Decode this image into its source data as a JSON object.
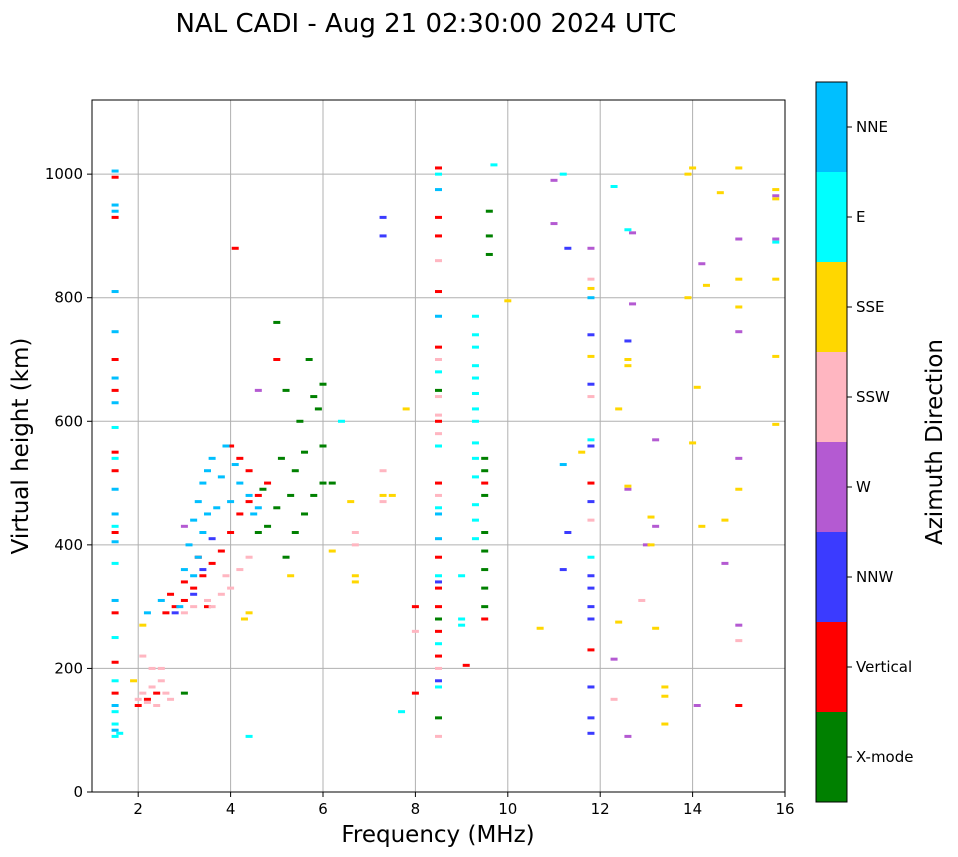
{
  "chart_data": {
    "type": "scatter",
    "title": "NAL CADI - Aug 21 02:30:00 2024 UTC",
    "xlabel": "Frequency (MHz)",
    "ylabel": "Virtual height (km)",
    "xlim": [
      1,
      16
    ],
    "ylim": [
      0,
      1120
    ],
    "xticks": [
      2,
      4,
      6,
      8,
      10,
      12,
      14,
      16
    ],
    "yticks": [
      0,
      200,
      400,
      600,
      800,
      1000
    ],
    "grid": true,
    "colorbar": {
      "label": "Azimuth Direction",
      "categories": [
        {
          "name": "X-mode",
          "color": "#008000"
        },
        {
          "name": "Vertical",
          "color": "#ff0000"
        },
        {
          "name": "NNW",
          "color": "#3b3bff"
        },
        {
          "name": "W",
          "color": "#b45ad2"
        },
        {
          "name": "SSW",
          "color": "#ffb6c1"
        },
        {
          "name": "SSE",
          "color": "#ffd700"
        },
        {
          "name": "E",
          "color": "#00ffff"
        },
        {
          "name": "NNE",
          "color": "#00bfff"
        }
      ]
    },
    "series": [
      {
        "name": "X-mode",
        "points": [
          [
            9.5,
            300
          ],
          [
            9.5,
            330
          ],
          [
            9.5,
            360
          ],
          [
            9.5,
            390
          ],
          [
            9.5,
            420
          ],
          [
            9.5,
            480
          ],
          [
            9.5,
            520
          ],
          [
            9.5,
            540
          ],
          [
            9.6,
            940
          ],
          [
            9.6,
            900
          ],
          [
            9.6,
            870
          ],
          [
            5.2,
            380
          ],
          [
            5.4,
            420
          ],
          [
            5.6,
            450
          ],
          [
            5.8,
            480
          ],
          [
            6.0,
            500
          ],
          [
            6.0,
            560
          ],
          [
            5.5,
            600
          ],
          [
            5.8,
            640
          ],
          [
            6.0,
            660
          ],
          [
            5.4,
            520
          ],
          [
            5.0,
            460
          ],
          [
            4.8,
            430
          ],
          [
            5.6,
            550
          ],
          [
            5.9,
            620
          ],
          [
            5.7,
            700
          ],
          [
            5.2,
            650
          ],
          [
            5.0,
            760
          ],
          [
            3.0,
            160
          ],
          [
            8.5,
            120
          ],
          [
            8.5,
            280
          ],
          [
            8.5,
            650
          ],
          [
            4.6,
            420
          ],
          [
            6.2,
            500
          ],
          [
            5.3,
            480
          ],
          [
            4.7,
            490
          ],
          [
            5.1,
            540
          ]
        ]
      },
      {
        "name": "Vertical",
        "points": [
          [
            1.5,
            700
          ],
          [
            1.5,
            650
          ],
          [
            1.5,
            550
          ],
          [
            1.5,
            520
          ],
          [
            1.5,
            420
          ],
          [
            1.5,
            290
          ],
          [
            1.5,
            210
          ],
          [
            1.5,
            160
          ],
          [
            1.5,
            930
          ],
          [
            1.5,
            995
          ],
          [
            2.0,
            140
          ],
          [
            2.2,
            150
          ],
          [
            2.4,
            160
          ],
          [
            2.6,
            290
          ],
          [
            2.8,
            300
          ],
          [
            3.0,
            310
          ],
          [
            3.2,
            330
          ],
          [
            3.4,
            350
          ],
          [
            3.6,
            370
          ],
          [
            3.8,
            390
          ],
          [
            4.0,
            420
          ],
          [
            4.2,
            450
          ],
          [
            4.4,
            470
          ],
          [
            4.6,
            480
          ],
          [
            4.0,
            560
          ],
          [
            4.2,
            540
          ],
          [
            4.4,
            520
          ],
          [
            4.8,
            500
          ],
          [
            5.0,
            700
          ],
          [
            4.1,
            880
          ],
          [
            8.5,
            1010
          ],
          [
            8.5,
            930
          ],
          [
            8.5,
            900
          ],
          [
            8.5,
            810
          ],
          [
            8.5,
            720
          ],
          [
            8.5,
            600
          ],
          [
            8.5,
            500
          ],
          [
            8.5,
            380
          ],
          [
            8.5,
            330
          ],
          [
            8.5,
            300
          ],
          [
            8.5,
            260
          ],
          [
            8.5,
            220
          ],
          [
            8.0,
            300
          ],
          [
            8.0,
            160
          ],
          [
            9.5,
            280
          ],
          [
            9.5,
            500
          ],
          [
            9.1,
            205
          ],
          [
            11.8,
            230
          ],
          [
            11.8,
            500
          ],
          [
            15.0,
            140
          ],
          [
            3.0,
            340
          ],
          [
            3.5,
            300
          ],
          [
            3.3,
            380
          ],
          [
            2.7,
            320
          ]
        ]
      },
      {
        "name": "NNW",
        "points": [
          [
            7.3,
            930
          ],
          [
            7.3,
            900
          ],
          [
            11.3,
            880
          ],
          [
            11.3,
            420
          ],
          [
            11.2,
            360
          ],
          [
            11.8,
            740
          ],
          [
            11.8,
            660
          ],
          [
            11.8,
            560
          ],
          [
            11.8,
            470
          ],
          [
            11.8,
            350
          ],
          [
            11.8,
            330
          ],
          [
            11.8,
            300
          ],
          [
            11.8,
            280
          ],
          [
            11.8,
            170
          ],
          [
            11.8,
            120
          ],
          [
            11.8,
            95
          ],
          [
            12.6,
            730
          ],
          [
            8.5,
            340
          ],
          [
            8.5,
            180
          ],
          [
            3.2,
            320
          ],
          [
            3.4,
            360
          ],
          [
            2.8,
            290
          ],
          [
            3.6,
            410
          ]
        ]
      },
      {
        "name": "W",
        "points": [
          [
            11.0,
            990
          ],
          [
            11.0,
            920
          ],
          [
            11.8,
            880
          ],
          [
            12.7,
            905
          ],
          [
            12.7,
            790
          ],
          [
            12.6,
            490
          ],
          [
            13.2,
            570
          ],
          [
            13.2,
            430
          ],
          [
            13.0,
            400
          ],
          [
            12.3,
            215
          ],
          [
            12.6,
            90
          ],
          [
            14.2,
            855
          ],
          [
            15.0,
            895
          ],
          [
            15.0,
            745
          ],
          [
            15.0,
            540
          ],
          [
            15.0,
            270
          ],
          [
            14.7,
            370
          ],
          [
            14.1,
            140
          ],
          [
            15.8,
            895
          ],
          [
            15.8,
            965
          ],
          [
            4.6,
            650
          ],
          [
            3.0,
            430
          ]
        ]
      },
      {
        "name": "SSW",
        "points": [
          [
            2.0,
            150
          ],
          [
            2.1,
            160
          ],
          [
            2.2,
            145
          ],
          [
            2.3,
            170
          ],
          [
            2.4,
            140
          ],
          [
            2.5,
            180
          ],
          [
            2.6,
            160
          ],
          [
            2.5,
            200
          ],
          [
            2.3,
            200
          ],
          [
            2.1,
            220
          ],
          [
            2.7,
            150
          ],
          [
            3.0,
            290
          ],
          [
            3.2,
            300
          ],
          [
            3.5,
            310
          ],
          [
            3.8,
            320
          ],
          [
            4.0,
            330
          ],
          [
            4.2,
            360
          ],
          [
            4.4,
            380
          ],
          [
            3.6,
            300
          ],
          [
            3.9,
            350
          ],
          [
            6.7,
            400
          ],
          [
            6.7,
            420
          ],
          [
            7.3,
            470
          ],
          [
            7.3,
            520
          ],
          [
            8.5,
            860
          ],
          [
            8.5,
            700
          ],
          [
            8.5,
            640
          ],
          [
            8.5,
            610
          ],
          [
            8.5,
            580
          ],
          [
            8.5,
            480
          ],
          [
            8.5,
            200
          ],
          [
            8.5,
            90
          ],
          [
            11.8,
            830
          ],
          [
            11.8,
            640
          ],
          [
            11.8,
            440
          ],
          [
            12.3,
            150
          ],
          [
            12.9,
            310
          ],
          [
            15.0,
            245
          ],
          [
            8.0,
            260
          ]
        ]
      },
      {
        "name": "SSE",
        "points": [
          [
            13.9,
            1000
          ],
          [
            14.0,
            1010
          ],
          [
            14.6,
            970
          ],
          [
            15.0,
            1010
          ],
          [
            15.8,
            975
          ],
          [
            15.8,
            960
          ],
          [
            14.3,
            820
          ],
          [
            15.0,
            830
          ],
          [
            15.0,
            785
          ],
          [
            15.8,
            830
          ],
          [
            13.9,
            800
          ],
          [
            15.8,
            705
          ],
          [
            14.0,
            565
          ],
          [
            15.8,
            595
          ],
          [
            14.1,
            655
          ],
          [
            14.2,
            430
          ],
          [
            14.7,
            440
          ],
          [
            15.0,
            490
          ],
          [
            12.4,
            620
          ],
          [
            12.6,
            700
          ],
          [
            12.6,
            690
          ],
          [
            12.6,
            495
          ],
          [
            13.1,
            445
          ],
          [
            13.1,
            400
          ],
          [
            12.4,
            275
          ],
          [
            13.2,
            265
          ],
          [
            13.4,
            170
          ],
          [
            13.4,
            155
          ],
          [
            13.4,
            110
          ],
          [
            11.6,
            550
          ],
          [
            10.7,
            265
          ],
          [
            10.0,
            795
          ],
          [
            11.8,
            815
          ],
          [
            11.8,
            705
          ],
          [
            6.7,
            340
          ],
          [
            6.7,
            350
          ],
          [
            6.2,
            390
          ],
          [
            6.6,
            470
          ],
          [
            7.3,
            480
          ],
          [
            7.5,
            480
          ],
          [
            7.8,
            620
          ],
          [
            4.4,
            290
          ],
          [
            4.3,
            280
          ],
          [
            5.3,
            350
          ],
          [
            2.1,
            270
          ],
          [
            1.9,
            180
          ]
        ]
      },
      {
        "name": "E",
        "points": [
          [
            1.5,
            590
          ],
          [
            1.5,
            540
          ],
          [
            1.5,
            430
          ],
          [
            1.5,
            370
          ],
          [
            1.5,
            250
          ],
          [
            1.5,
            180
          ],
          [
            1.5,
            130
          ],
          [
            1.5,
            110
          ],
          [
            1.5,
            90
          ],
          [
            1.6,
            95
          ],
          [
            8.5,
            1000
          ],
          [
            8.5,
            680
          ],
          [
            8.5,
            560
          ],
          [
            8.5,
            460
          ],
          [
            8.5,
            350
          ],
          [
            8.5,
            240
          ],
          [
            8.5,
            170
          ],
          [
            9.3,
            770
          ],
          [
            9.3,
            740
          ],
          [
            9.3,
            720
          ],
          [
            9.3,
            690
          ],
          [
            9.3,
            670
          ],
          [
            9.3,
            645
          ],
          [
            9.3,
            620
          ],
          [
            9.3,
            600
          ],
          [
            9.3,
            565
          ],
          [
            9.3,
            540
          ],
          [
            9.3,
            510
          ],
          [
            9.3,
            465
          ],
          [
            9.3,
            440
          ],
          [
            9.3,
            410
          ],
          [
            9.0,
            350
          ],
          [
            9.0,
            280
          ],
          [
            9.0,
            270
          ],
          [
            11.2,
            1000
          ],
          [
            11.8,
            570
          ],
          [
            11.8,
            380
          ],
          [
            12.3,
            980
          ],
          [
            12.6,
            910
          ],
          [
            15.8,
            890
          ],
          [
            9.7,
            1015
          ],
          [
            4.4,
            90
          ],
          [
            7.7,
            130
          ],
          [
            6.4,
            600
          ]
        ]
      },
      {
        "name": "NNE",
        "points": [
          [
            1.5,
            1005
          ],
          [
            1.5,
            950
          ],
          [
            1.5,
            940
          ],
          [
            1.5,
            810
          ],
          [
            1.5,
            745
          ],
          [
            1.5,
            670
          ],
          [
            1.5,
            630
          ],
          [
            1.5,
            490
          ],
          [
            1.5,
            450
          ],
          [
            1.5,
            405
          ],
          [
            1.5,
            310
          ],
          [
            1.5,
            140
          ],
          [
            1.5,
            100
          ],
          [
            3.0,
            360
          ],
          [
            3.1,
            400
          ],
          [
            3.2,
            440
          ],
          [
            3.3,
            470
          ],
          [
            3.4,
            500
          ],
          [
            3.5,
            520
          ],
          [
            3.6,
            540
          ],
          [
            3.8,
            510
          ],
          [
            4.0,
            470
          ],
          [
            4.2,
            500
          ],
          [
            4.4,
            480
          ],
          [
            4.5,
            450
          ],
          [
            3.3,
            380
          ],
          [
            3.4,
            420
          ],
          [
            3.7,
            460
          ],
          [
            4.1,
            530
          ],
          [
            4.6,
            460
          ],
          [
            3.9,
            560
          ],
          [
            3.5,
            450
          ],
          [
            3.2,
            350
          ],
          [
            2.9,
            300
          ],
          [
            8.5,
            975
          ],
          [
            8.5,
            770
          ],
          [
            8.5,
            450
          ],
          [
            8.5,
            410
          ],
          [
            11.8,
            800
          ],
          [
            11.2,
            530
          ],
          [
            2.2,
            290
          ],
          [
            2.5,
            310
          ]
        ]
      }
    ]
  }
}
